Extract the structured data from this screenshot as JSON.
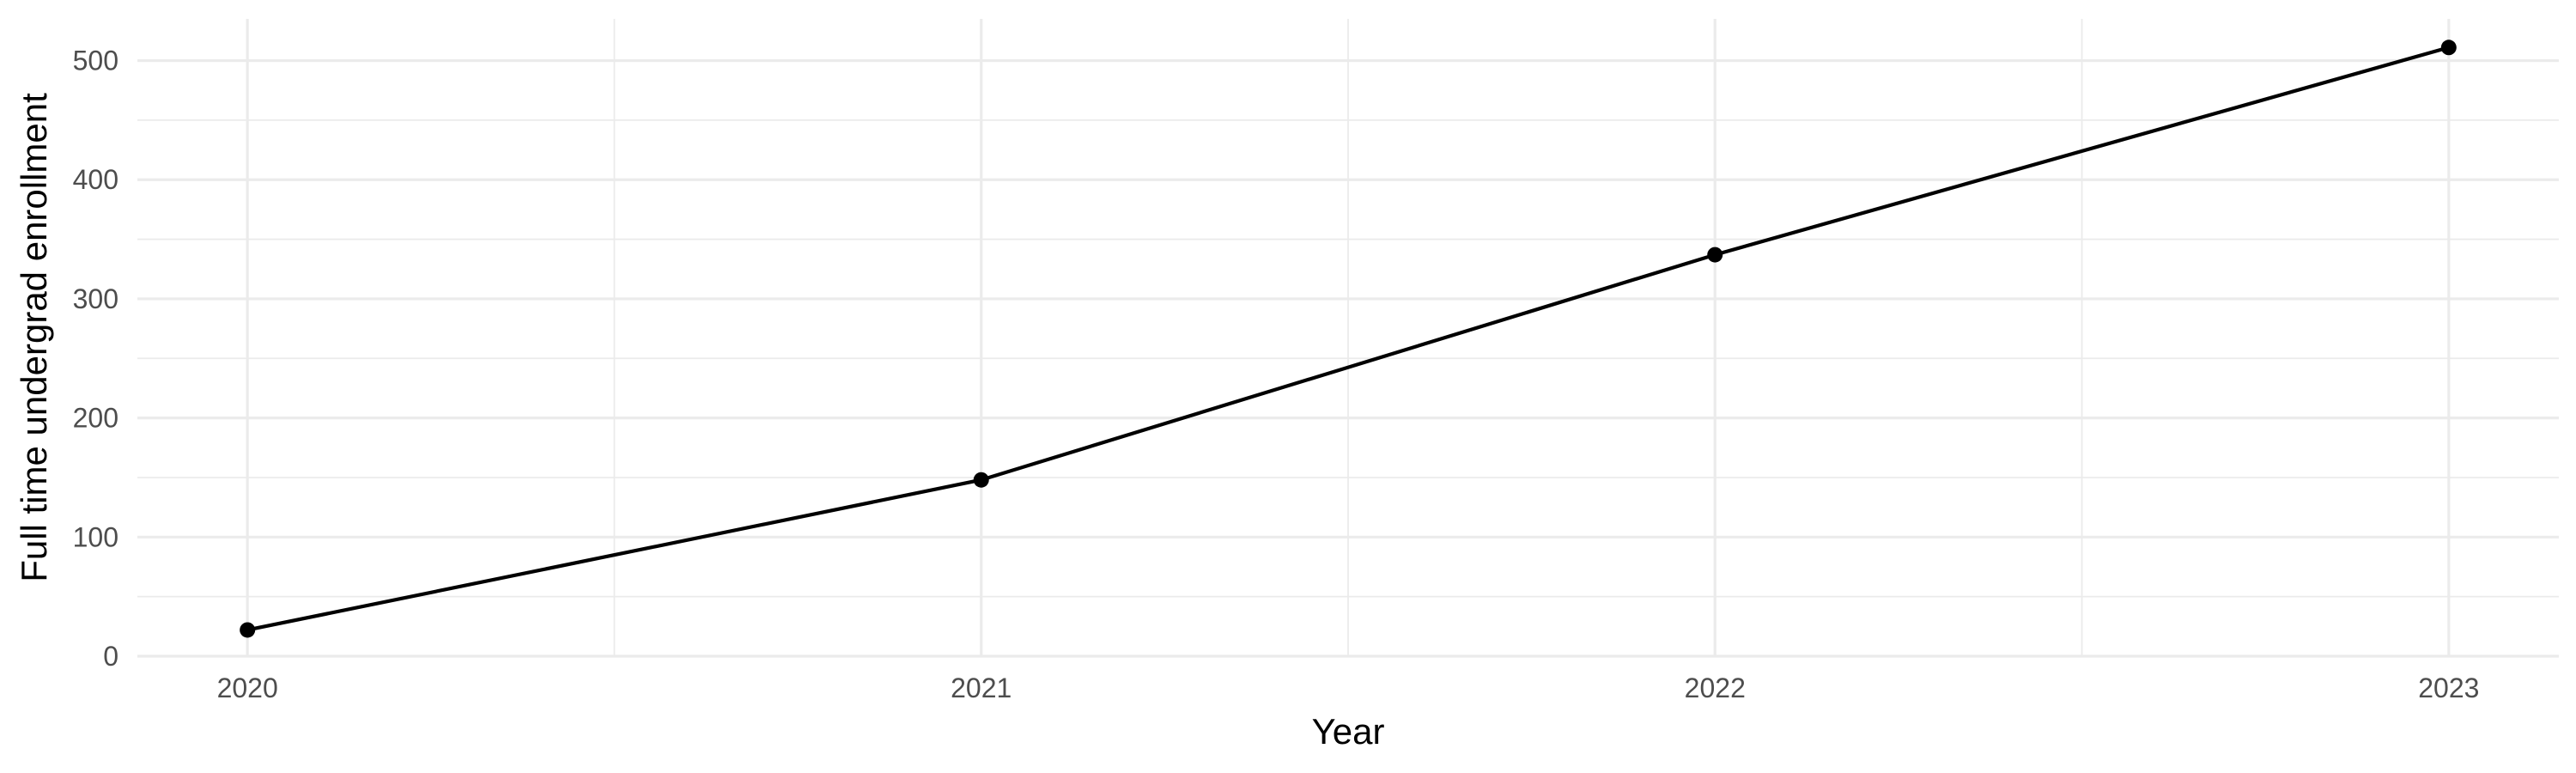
{
  "chart_data": {
    "type": "line",
    "x": [
      2020,
      2021,
      2022,
      2023
    ],
    "series": [
      {
        "values": [
          22,
          148,
          337,
          511
        ]
      }
    ],
    "x_tick_labels": [
      "2020",
      "2021",
      "2022",
      "2023"
    ],
    "y_ticks": [
      0,
      100,
      200,
      300,
      400,
      500
    ],
    "xlabel": "Year",
    "ylabel": "Full time undergrad enrollment",
    "xlim": [
      2019.85,
      2023.15
    ],
    "ylim": [
      0,
      535
    ],
    "grid": true,
    "colors": {
      "line": "#000000",
      "grid": "#ebebeb",
      "tick_text": "#4d4d4d"
    }
  }
}
